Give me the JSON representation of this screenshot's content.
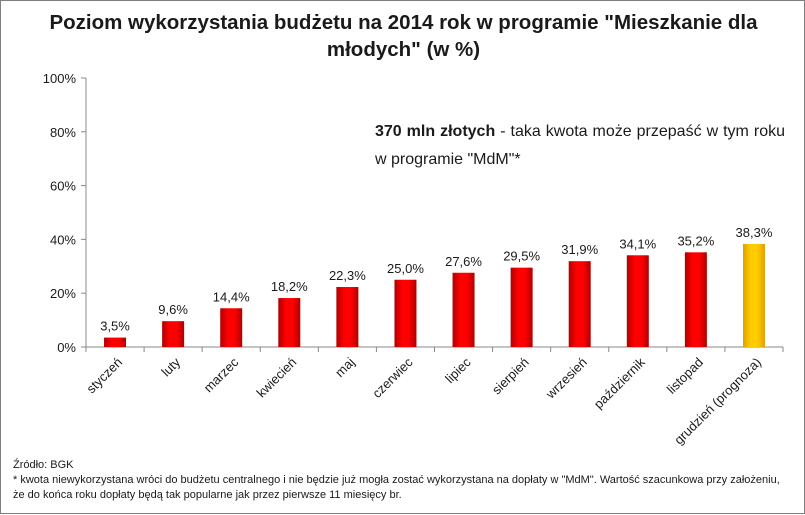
{
  "chart_data": {
    "type": "bar",
    "title": "Poziom wykorzystania budżetu na 2014 rok w programie \"Mieszkanie dla młodych\" (w %)",
    "categories": [
      "styczeń",
      "luty",
      "marzec",
      "kwiecień",
      "maj",
      "czerwiec",
      "lipiec",
      "sierpień",
      "wrzesień",
      "październik",
      "listopad",
      "grudzień (prognoza)"
    ],
    "values": [
      3.5,
      9.6,
      14.4,
      18.2,
      22.3,
      25.0,
      27.6,
      29.5,
      31.9,
      34.1,
      35.2,
      38.3
    ],
    "value_labels": [
      "3,5%",
      "9,6%",
      "14,4%",
      "18,2%",
      "22,3%",
      "25,0%",
      "27,6%",
      "29,5%",
      "31,9%",
      "34,1%",
      "35,2%",
      "38,3%"
    ],
    "ylim": [
      0,
      100
    ],
    "yticks": [
      "0%",
      "20%",
      "40%",
      "60%",
      "80%",
      "100%"
    ],
    "ytick_values": [
      0,
      20,
      40,
      60,
      80,
      100
    ],
    "xlabel": "",
    "ylabel": "",
    "grid": false,
    "legend": "none",
    "highlight_index": 11,
    "colors": {
      "bar": "#ff0000",
      "bar_dark": "#b00000",
      "highlight": "#ffcc00",
      "highlight_dark": "#e0a000",
      "axis": "#888888"
    }
  },
  "annotation": {
    "bold": "370 mln złotych",
    "text": " - taka kwota może przepaść w tym roku w programie  \"MdM\"*"
  },
  "source": "Źródło: BGK",
  "footnote": "* kwota niewykorzystana wróci do budżetu centralnego i nie będzie już mogła zostać wykorzystana na dopłaty w \"MdM\". Wartość szacunkowa przy założeniu, że do końca roku dopłaty będą tak popularne jak przez pierwsze 11 miesięcy br."
}
